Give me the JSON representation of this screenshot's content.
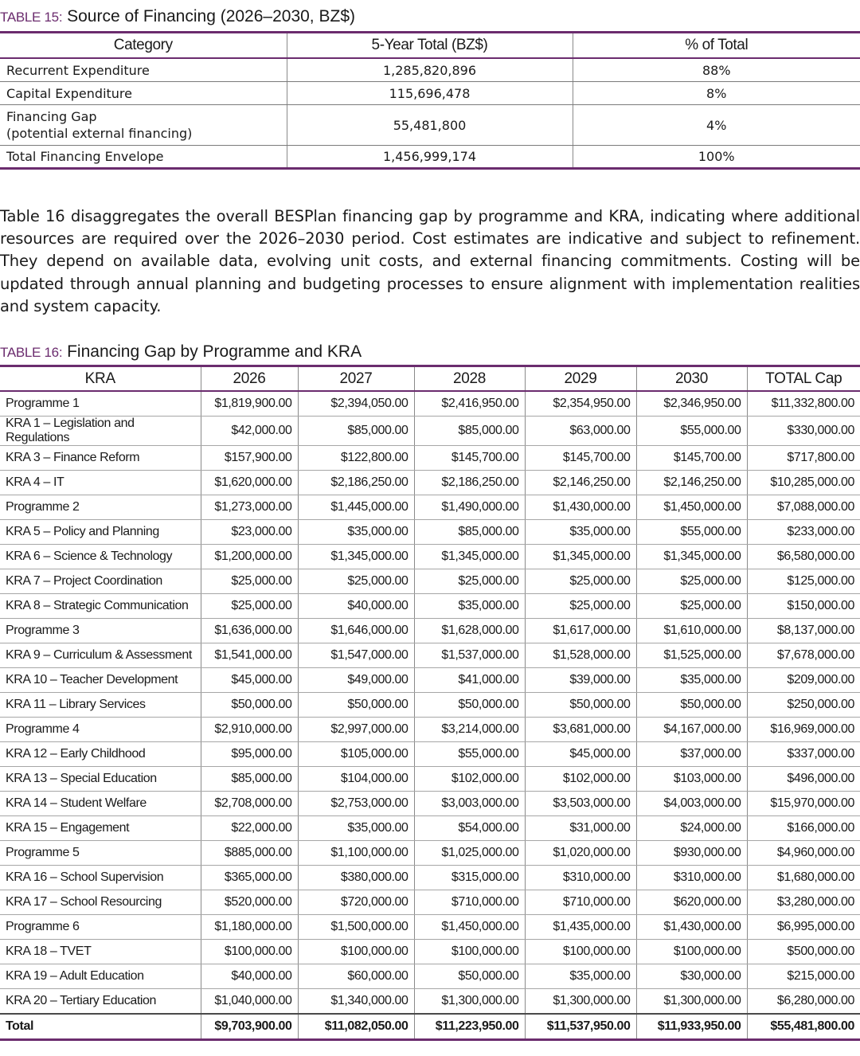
{
  "table15": {
    "label": "TABLE 15:",
    "title": "Source of Financing (2026–2030, BZ$)",
    "headers": [
      "Category",
      "5-Year Total (BZ$)",
      "% of Total"
    ],
    "rows": [
      {
        "category": "Recurrent Expenditure",
        "total": "1,285,820,896",
        "pct": "88%"
      },
      {
        "category": "Capital Expenditure",
        "total": "115,696,478",
        "pct": "8%"
      },
      {
        "category": "Financing Gap",
        "category_sub": "(potential external financing)",
        "total": "55,481,800",
        "pct": "4%"
      },
      {
        "category": "Total Financing Envelope",
        "total": "1,456,999,174",
        "pct": "100%"
      }
    ]
  },
  "paragraph": "Table 16 disaggregates the overall BESPlan financing gap by programme and KRA, indicating where additional resources are required over the 2026–2030 period. Cost estimates are indicative and subject to refinement. They depend on available data, evolving unit costs, and external financing commitments. Costing will be updated through annual planning and budgeting processes to ensure alignment with implementation realities and system capacity.",
  "table16": {
    "label": "TABLE 16:",
    "title": "Financing Gap by Programme and KRA",
    "headers": [
      "KRA",
      "2026",
      "2027",
      "2028",
      "2029",
      "2030",
      "TOTAL Cap"
    ],
    "rows": [
      [
        "Programme 1",
        "$1,819,900.00",
        "$2,394,050.00",
        "$2,416,950.00",
        "$2,354,950.00",
        "$2,346,950.00",
        "$11,332,800.00"
      ],
      [
        "KRA 1 – Legislation and Regulations",
        "$42,000.00",
        "$85,000.00",
        "$85,000.00",
        "$63,000.00",
        "$55,000.00",
        "$330,000.00"
      ],
      [
        "KRA 3 – Finance Reform",
        "$157,900.00",
        "$122,800.00",
        "$145,700.00",
        "$145,700.00",
        "$145,700.00",
        "$717,800.00"
      ],
      [
        "KRA 4 – IT",
        "$1,620,000.00",
        "$2,186,250.00",
        "$2,186,250.00",
        "$2,146,250.00",
        "$2,146,250.00",
        "$10,285,000.00"
      ],
      [
        "Programme 2",
        "$1,273,000.00",
        "$1,445,000.00",
        "$1,490,000.00",
        "$1,430,000.00",
        "$1,450,000.00",
        "$7,088,000.00"
      ],
      [
        "KRA 5 – Policy and Planning",
        "$23,000.00",
        "$35,000.00",
        "$85,000.00",
        "$35,000.00",
        "$55,000.00",
        "$233,000.00"
      ],
      [
        "KRA 6 – Science & Technology",
        "$1,200,000.00",
        "$1,345,000.00",
        "$1,345,000.00",
        "$1,345,000.00",
        "$1,345,000.00",
        "$6,580,000.00"
      ],
      [
        "KRA 7 – Project Coordination",
        "$25,000.00",
        "$25,000.00",
        "$25,000.00",
        "$25,000.00",
        "$25,000.00",
        "$125,000.00"
      ],
      [
        "KRA 8 – Strategic Communication",
        "$25,000.00",
        "$40,000.00",
        "$35,000.00",
        "$25,000.00",
        "$25,000.00",
        "$150,000.00"
      ],
      [
        "Programme 3",
        "$1,636,000.00",
        "$1,646,000.00",
        "$1,628,000.00",
        "$1,617,000.00",
        "$1,610,000.00",
        "$8,137,000.00"
      ],
      [
        "KRA 9 – Curriculum & Assessment",
        "$1,541,000.00",
        "$1,547,000.00",
        "$1,537,000.00",
        "$1,528,000.00",
        "$1,525,000.00",
        "$7,678,000.00"
      ],
      [
        "KRA 10 – Teacher Development",
        "$45,000.00",
        "$49,000.00",
        "$41,000.00",
        "$39,000.00",
        "$35,000.00",
        "$209,000.00"
      ],
      [
        "KRA 11 – Library Services",
        "$50,000.00",
        "$50,000.00",
        "$50,000.00",
        "$50,000.00",
        "$50,000.00",
        "$250,000.00"
      ],
      [
        "Programme 4",
        "$2,910,000.00",
        "$2,997,000.00",
        "$3,214,000.00",
        "$3,681,000.00",
        "$4,167,000.00",
        "$16,969,000.00"
      ],
      [
        "KRA 12 – Early Childhood",
        "$95,000.00",
        "$105,000.00",
        "$55,000.00",
        "$45,000.00",
        "$37,000.00",
        "$337,000.00"
      ],
      [
        "KRA 13 – Special Education",
        "$85,000.00",
        "$104,000.00",
        "$102,000.00",
        "$102,000.00",
        "$103,000.00",
        "$496,000.00"
      ],
      [
        "KRA 14 – Student Welfare",
        "$2,708,000.00",
        "$2,753,000.00",
        "$3,003,000.00",
        "$3,503,000.00",
        "$4,003,000.00",
        "$15,970,000.00"
      ],
      [
        "KRA 15 – Engagement",
        "$22,000.00",
        "$35,000.00",
        "$54,000.00",
        "$31,000.00",
        "$24,000.00",
        "$166,000.00"
      ],
      [
        "Programme 5",
        "$885,000.00",
        "$1,100,000.00",
        "$1,025,000.00",
        "$1,020,000.00",
        "$930,000.00",
        "$4,960,000.00"
      ],
      [
        "KRA 16 – School Supervision",
        "$365,000.00",
        "$380,000.00",
        "$315,000.00",
        "$310,000.00",
        "$310,000.00",
        "$1,680,000.00"
      ],
      [
        "KRA 17 – School Resourcing",
        "$520,000.00",
        "$720,000.00",
        "$710,000.00",
        "$710,000.00",
        "$620,000.00",
        "$3,280,000.00"
      ],
      [
        "Programme 6",
        "$1,180,000.00",
        "$1,500,000.00",
        "$1,450,000.00",
        "$1,435,000.00",
        "$1,430,000.00",
        "$6,995,000.00"
      ],
      [
        "KRA 18 – TVET",
        "$100,000.00",
        "$100,000.00",
        "$100,000.00",
        "$100,000.00",
        "$100,000.00",
        "$500,000.00"
      ],
      [
        "KRA 19 – Adult Education",
        "$40,000.00",
        "$60,000.00",
        "$50,000.00",
        "$35,000.00",
        "$30,000.00",
        "$215,000.00"
      ],
      [
        "KRA 20 – Tertiary Education",
        "$1,040,000.00",
        "$1,340,000.00",
        "$1,300,000.00",
        "$1,300,000.00",
        "$1,300,000.00",
        "$6,280,000.00"
      ]
    ],
    "total_row": [
      "Total",
      "$9,703,900.00",
      "$11,082,050.00",
      "$11,223,950.00",
      "$11,537,950.00",
      "$11,933,950.00",
      "$55,481,800.00"
    ]
  }
}
